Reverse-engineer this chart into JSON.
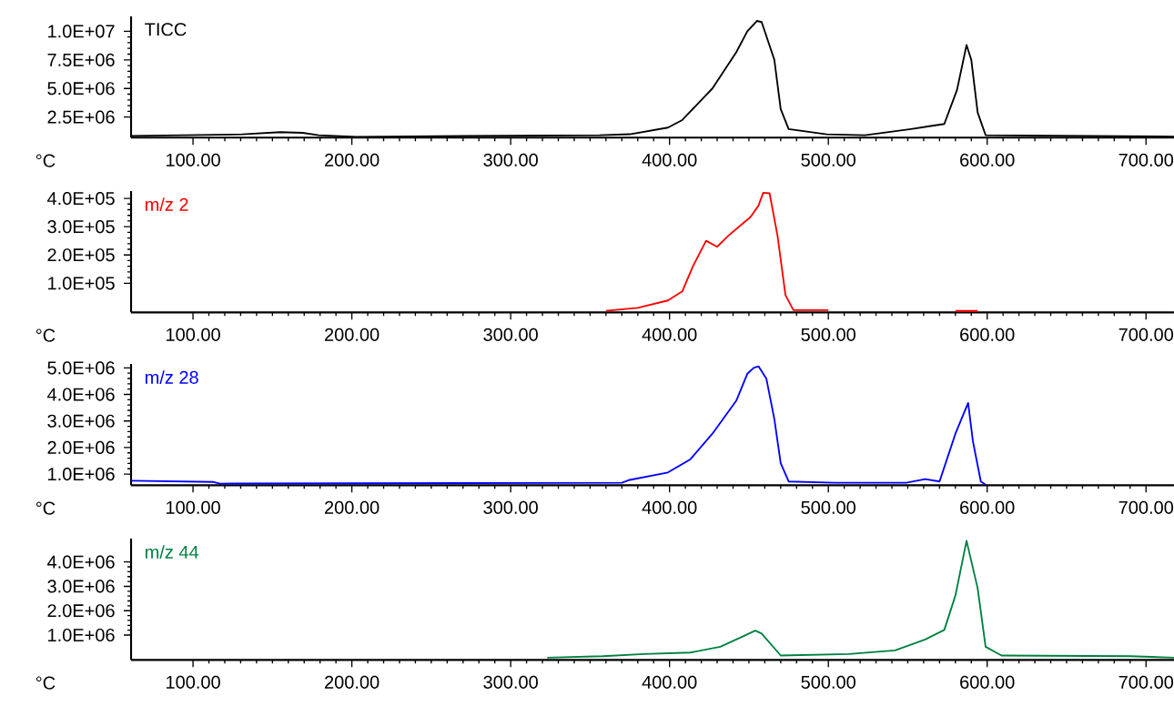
{
  "chart_data": [
    {
      "type": "line",
      "xlabel": "°C",
      "xlim": [
        61,
        718
      ],
      "ylim": [
        700000,
        11300000
      ],
      "xticks": [
        {
          "value": 100,
          "label": "100.00"
        },
        {
          "value": 200,
          "label": "200.00"
        },
        {
          "value": 300,
          "label": "300.00"
        },
        {
          "value": 400,
          "label": "400.00"
        },
        {
          "value": 500,
          "label": "500.00"
        },
        {
          "value": 600,
          "label": "600.00"
        },
        {
          "value": 700,
          "label": "700.00"
        }
      ],
      "yticks": [
        {
          "value": 2500000,
          "label": "2.5E+06"
        },
        {
          "value": 5000000,
          "label": "5.0E+06"
        },
        {
          "value": 7500000,
          "label": "7.5E+06"
        },
        {
          "value": 10000000,
          "label": "1.0E+07"
        }
      ],
      "x": [
        61,
        131,
        155,
        169,
        179,
        203,
        356,
        375,
        399,
        408,
        427,
        442,
        449,
        455,
        458,
        466,
        470,
        475,
        499,
        523,
        552,
        573,
        581,
        587,
        590,
        594,
        599,
        718
      ],
      "series": [
        {
          "name": "TICC",
          "color": "#000000",
          "values": [
            860000,
            990000,
            1180000,
            1120000,
            920000,
            780000,
            920000,
            1000000,
            1580000,
            2240000,
            5000000,
            8160000,
            10000000,
            10900000,
            10800000,
            7500000,
            3200000,
            1450000,
            990000,
            920000,
            1450000,
            1900000,
            4870000,
            8800000,
            7500000,
            2900000,
            920000,
            790000
          ]
        }
      ]
    },
    {
      "type": "line",
      "xlabel": "°C",
      "xlim": [
        61,
        718
      ],
      "ylim": [
        -3000,
        426000
      ],
      "xticks": [
        {
          "value": 100,
          "label": "100.00"
        },
        {
          "value": 200,
          "label": "200.00"
        },
        {
          "value": 300,
          "label": "300.00"
        },
        {
          "value": 400,
          "label": "400.00"
        },
        {
          "value": 500,
          "label": "500.00"
        },
        {
          "value": 600,
          "label": "600.00"
        },
        {
          "value": 700,
          "label": "700.00"
        }
      ],
      "yticks": [
        {
          "value": 100000,
          "label": "1.0E+05"
        },
        {
          "value": 200000,
          "label": "2.0E+05"
        },
        {
          "value": 300000,
          "label": "3.0E+05"
        },
        {
          "value": 400000,
          "label": "4.0E+05"
        }
      ],
      "x": [
        360,
        380,
        399,
        408,
        415,
        423,
        430,
        437,
        451,
        456,
        459,
        463,
        468,
        473,
        478,
        500,
        540,
        580,
        594
      ],
      "series": [
        {
          "name": "m/z 2",
          "color": "#ff0000",
          "values": [
            2600,
            13000,
            39000,
            71000,
            163000,
            250000,
            229000,
            268000,
            334000,
            374000,
            420000,
            418000,
            268000,
            58000,
            5000,
            5000,
            null,
            2000,
            2000
          ]
        }
      ]
    },
    {
      "type": "line",
      "xlabel": "°C",
      "xlim": [
        61,
        718
      ],
      "ylim": [
        580000,
        5150000
      ],
      "xticks": [
        {
          "value": 100,
          "label": "100.00"
        },
        {
          "value": 200,
          "label": "200.00"
        },
        {
          "value": 300,
          "label": "300.00"
        },
        {
          "value": 400,
          "label": "400.00"
        },
        {
          "value": 500,
          "label": "500.00"
        },
        {
          "value": 600,
          "label": "600.00"
        },
        {
          "value": 700,
          "label": "700.00"
        }
      ],
      "yticks": [
        {
          "value": 1000000,
          "label": "1.0E+06"
        },
        {
          "value": 2000000,
          "label": "2.0E+06"
        },
        {
          "value": 3000000,
          "label": "3.0E+06"
        },
        {
          "value": 4000000,
          "label": "4.0E+06"
        },
        {
          "value": 5000000,
          "label": "5.0E+06"
        }
      ],
      "x": [
        61,
        113,
        117,
        370,
        375,
        399,
        413,
        427,
        442,
        449,
        453,
        456,
        461,
        466,
        470,
        475,
        504,
        549,
        561,
        570,
        580,
        588,
        591,
        596,
        599
      ],
      "series": [
        {
          "name": "m/z 28",
          "color": "#0000ff",
          "values": [
            750000,
            700000,
            640000,
            670000,
            780000,
            1060000,
            1550000,
            2520000,
            3760000,
            4780000,
            5000000,
            5060000,
            4590000,
            3070000,
            1410000,
            720000,
            670000,
            670000,
            810000,
            720000,
            2520000,
            3680000,
            2240000,
            720000,
            600000
          ]
        }
      ]
    },
    {
      "type": "line",
      "xlabel": "°C",
      "xlim": [
        61,
        718
      ],
      "ylim": [
        -20000,
        4960000
      ],
      "xticks": [
        {
          "value": 100,
          "label": "100.00"
        },
        {
          "value": 200,
          "label": "200.00"
        },
        {
          "value": 300,
          "label": "300.00"
        },
        {
          "value": 400,
          "label": "400.00"
        },
        {
          "value": 500,
          "label": "500.00"
        },
        {
          "value": 600,
          "label": "600.00"
        },
        {
          "value": 700,
          "label": "700.00"
        }
      ],
      "yticks": [
        {
          "value": 1000000,
          "label": "1.0E+06"
        },
        {
          "value": 2000000,
          "label": "2.0E+06"
        },
        {
          "value": 3000000,
          "label": "3.0E+06"
        },
        {
          "value": 4000000,
          "label": "4.0E+06"
        }
      ],
      "x": [
        323,
        358,
        384,
        413,
        432,
        447,
        454,
        458,
        470,
        513,
        542,
        561,
        573,
        580,
        587,
        594,
        599,
        609,
        690,
        718
      ],
      "series": [
        {
          "name": "m/z 44",
          "color": "#008040",
          "values": [
            70000,
            130000,
            220000,
            280000,
            520000,
            970000,
            1180000,
            1060000,
            160000,
            220000,
            370000,
            820000,
            1210000,
            2620000,
            4870000,
            2920000,
            520000,
            160000,
            130000,
            70000
          ]
        }
      ]
    }
  ]
}
